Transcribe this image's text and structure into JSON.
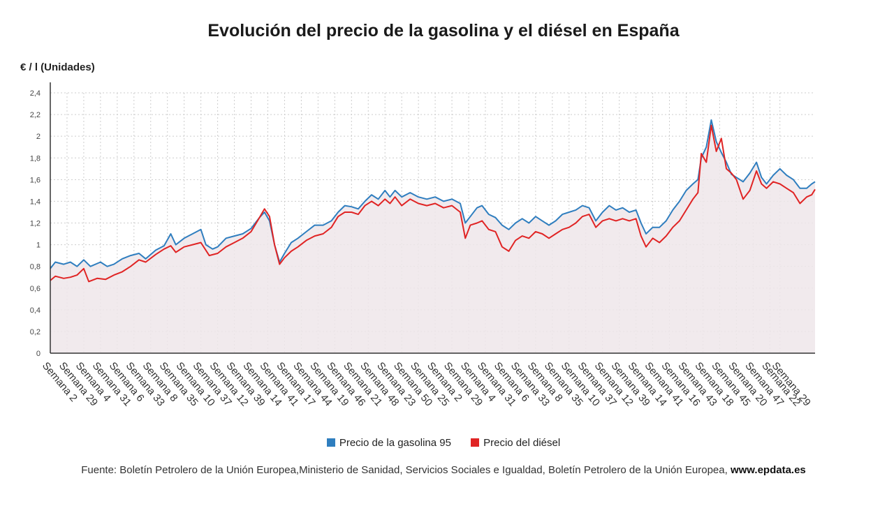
{
  "title": "Evolución del precio de la gasolina y el diésel en España",
  "unit_label": "€ / l (Unidades)",
  "source_text": "Fuente: Boletín Petrolero de la Unión Europea,Ministerio de Sanidad, Servicios Sociales e Igualdad, Boletín Petrolero de la Unión Europea,",
  "source_site": "www.epdata.es",
  "colors": {
    "gasolina": "#2f7ebf",
    "diesel": "#e02424",
    "fill": "#efe6ea",
    "grid": "#cccccc"
  },
  "chart_data": {
    "type": "line",
    "title": "Evolución del precio de la gasolina y el diésel en España",
    "ylabel": "€ / l (Unidades)",
    "ylim": [
      0,
      2.4
    ],
    "y_ticks": [
      "0",
      "0,2",
      "0,4",
      "0,6",
      "0,8",
      "1",
      "1,2",
      "1,4",
      "1,6",
      "1,8",
      "2",
      "2,2",
      "2,4"
    ],
    "grid": true,
    "legend_position": "bottom",
    "x_tick_labels": [
      "Semana 2",
      "Semana 29",
      "Semana 4",
      "Semana 31",
      "Semana 6",
      "Semana 33",
      "Semana 8",
      "Semana 35",
      "Semana 10",
      "Semana 37",
      "Semana 12",
      "Semana 39",
      "Semana 14",
      "Semana 41",
      "Semana 17",
      "Semana 44",
      "Semana 19",
      "Semana 46",
      "Semana 21",
      "Semana 48",
      "Semana 23",
      "Semana 50",
      "Semana 25",
      "Semana 2",
      "Semana 29",
      "Semana 4",
      "Semana 31",
      "Semana 6",
      "Semana 33",
      "Semana 8",
      "Semana 35",
      "Semana 10",
      "Semana 37",
      "Semana 12",
      "Semana 39",
      "Semana 14",
      "Semana 41",
      "Semana 16",
      "Semana 43",
      "Semana 18",
      "Semana 45",
      "Semana 20",
      "Semana 47",
      "Semana 22",
      "Semana 29"
    ],
    "x_tick_index": [
      0,
      1,
      2,
      3,
      4,
      5,
      6,
      7,
      8,
      9,
      10,
      11,
      12,
      13,
      14,
      15,
      16,
      17,
      18,
      19,
      20,
      21,
      22,
      23,
      24,
      25,
      26,
      27,
      28,
      29,
      30,
      31,
      32,
      33,
      34,
      35,
      36,
      37,
      38,
      39,
      40,
      41,
      42,
      43,
      43.6
    ],
    "series": [
      {
        "name": "Precio de la gasolina 95",
        "color": "#2f7ebf",
        "points": [
          [
            0,
            0.78
          ],
          [
            0.3,
            0.84
          ],
          [
            0.8,
            0.82
          ],
          [
            1.2,
            0.84
          ],
          [
            1.6,
            0.8
          ],
          [
            2,
            0.86
          ],
          [
            2.4,
            0.8
          ],
          [
            3,
            0.84
          ],
          [
            3.4,
            0.8
          ],
          [
            3.8,
            0.82
          ],
          [
            4.3,
            0.87
          ],
          [
            4.8,
            0.9
          ],
          [
            5.3,
            0.92
          ],
          [
            5.7,
            0.87
          ],
          [
            6.3,
            0.95
          ],
          [
            6.8,
            0.99
          ],
          [
            7.2,
            1.1
          ],
          [
            7.5,
            1.0
          ],
          [
            8,
            1.06
          ],
          [
            8.5,
            1.1
          ],
          [
            9,
            1.14
          ],
          [
            9.3,
            1.0
          ],
          [
            9.7,
            0.96
          ],
          [
            10,
            0.98
          ],
          [
            10.5,
            1.06
          ],
          [
            11,
            1.08
          ],
          [
            11.5,
            1.1
          ],
          [
            12,
            1.15
          ],
          [
            12.5,
            1.25
          ],
          [
            12.8,
            1.3
          ],
          [
            13.1,
            1.22
          ],
          [
            13.4,
            1.0
          ],
          [
            13.7,
            0.84
          ],
          [
            14.0,
            0.92
          ],
          [
            14.4,
            1.02
          ],
          [
            14.8,
            1.06
          ],
          [
            15.3,
            1.12
          ],
          [
            15.8,
            1.18
          ],
          [
            16.3,
            1.18
          ],
          [
            16.8,
            1.22
          ],
          [
            17.2,
            1.3
          ],
          [
            17.6,
            1.36
          ],
          [
            18,
            1.35
          ],
          [
            18.4,
            1.33
          ],
          [
            18.8,
            1.4
          ],
          [
            19.2,
            1.46
          ],
          [
            19.6,
            1.42
          ],
          [
            20,
            1.5
          ],
          [
            20.3,
            1.44
          ],
          [
            20.6,
            1.5
          ],
          [
            21,
            1.44
          ],
          [
            21.5,
            1.48
          ],
          [
            22,
            1.44
          ],
          [
            22.5,
            1.42
          ],
          [
            23,
            1.44
          ],
          [
            23.5,
            1.4
          ],
          [
            24,
            1.42
          ],
          [
            24.5,
            1.38
          ],
          [
            24.8,
            1.2
          ],
          [
            25.1,
            1.26
          ],
          [
            25.5,
            1.34
          ],
          [
            25.8,
            1.36
          ],
          [
            26.2,
            1.28
          ],
          [
            26.6,
            1.25
          ],
          [
            27,
            1.18
          ],
          [
            27.4,
            1.14
          ],
          [
            27.8,
            1.2
          ],
          [
            28.2,
            1.24
          ],
          [
            28.6,
            1.2
          ],
          [
            29,
            1.26
          ],
          [
            29.4,
            1.22
          ],
          [
            29.8,
            1.18
          ],
          [
            30.2,
            1.22
          ],
          [
            30.6,
            1.28
          ],
          [
            31,
            1.3
          ],
          [
            31.4,
            1.32
          ],
          [
            31.8,
            1.36
          ],
          [
            32.2,
            1.34
          ],
          [
            32.6,
            1.22
          ],
          [
            33,
            1.3
          ],
          [
            33.4,
            1.36
          ],
          [
            33.8,
            1.32
          ],
          [
            34.2,
            1.34
          ],
          [
            34.6,
            1.3
          ],
          [
            35,
            1.32
          ],
          [
            35.3,
            1.2
          ],
          [
            35.6,
            1.1
          ],
          [
            36,
            1.16
          ],
          [
            36.4,
            1.16
          ],
          [
            36.8,
            1.22
          ],
          [
            37.2,
            1.32
          ],
          [
            37.6,
            1.4
          ],
          [
            38,
            1.5
          ],
          [
            38.4,
            1.56
          ],
          [
            38.7,
            1.6
          ],
          [
            38.9,
            1.8
          ],
          [
            39.2,
            1.9
          ],
          [
            39.5,
            2.15
          ],
          [
            39.8,
            1.95
          ],
          [
            40.1,
            1.85
          ],
          [
            40.4,
            1.76
          ],
          [
            40.7,
            1.65
          ],
          [
            41,
            1.62
          ],
          [
            41.4,
            1.58
          ],
          [
            41.8,
            1.66
          ],
          [
            42.2,
            1.76
          ],
          [
            42.5,
            1.62
          ],
          [
            42.8,
            1.56
          ],
          [
            43.2,
            1.64
          ],
          [
            43.6,
            1.7
          ],
          [
            44,
            1.64
          ],
          [
            44.4,
            1.6
          ],
          [
            44.8,
            1.52
          ],
          [
            45.2,
            1.52
          ],
          [
            45.5,
            1.56
          ],
          [
            45.7,
            1.58
          ]
        ]
      },
      {
        "name": "Precio del diésel",
        "color": "#e02424",
        "points": [
          [
            0,
            0.67
          ],
          [
            0.3,
            0.71
          ],
          [
            0.8,
            0.69
          ],
          [
            1.2,
            0.7
          ],
          [
            1.6,
            0.72
          ],
          [
            2,
            0.78
          ],
          [
            2.3,
            0.66
          ],
          [
            2.8,
            0.69
          ],
          [
            3.3,
            0.68
          ],
          [
            3.8,
            0.72
          ],
          [
            4.3,
            0.75
          ],
          [
            4.8,
            0.8
          ],
          [
            5.3,
            0.86
          ],
          [
            5.7,
            0.84
          ],
          [
            6.3,
            0.91
          ],
          [
            6.8,
            0.96
          ],
          [
            7.2,
            0.99
          ],
          [
            7.5,
            0.93
          ],
          [
            8,
            0.98
          ],
          [
            8.5,
            1.0
          ],
          [
            9,
            1.02
          ],
          [
            9.5,
            0.9
          ],
          [
            10,
            0.92
          ],
          [
            10.5,
            0.98
          ],
          [
            11,
            1.02
          ],
          [
            11.5,
            1.06
          ],
          [
            12,
            1.12
          ],
          [
            12.5,
            1.25
          ],
          [
            12.8,
            1.33
          ],
          [
            13.1,
            1.26
          ],
          [
            13.4,
            1.0
          ],
          [
            13.7,
            0.82
          ],
          [
            14.0,
            0.88
          ],
          [
            14.4,
            0.94
          ],
          [
            14.8,
            0.98
          ],
          [
            15.3,
            1.04
          ],
          [
            15.8,
            1.08
          ],
          [
            16.3,
            1.1
          ],
          [
            16.8,
            1.16
          ],
          [
            17.2,
            1.26
          ],
          [
            17.6,
            1.3
          ],
          [
            18,
            1.3
          ],
          [
            18.4,
            1.28
          ],
          [
            18.8,
            1.36
          ],
          [
            19.2,
            1.4
          ],
          [
            19.6,
            1.36
          ],
          [
            20,
            1.42
          ],
          [
            20.3,
            1.38
          ],
          [
            20.6,
            1.44
          ],
          [
            21,
            1.36
          ],
          [
            21.5,
            1.42
          ],
          [
            22,
            1.38
          ],
          [
            22.5,
            1.36
          ],
          [
            23,
            1.38
          ],
          [
            23.5,
            1.34
          ],
          [
            24,
            1.36
          ],
          [
            24.5,
            1.3
          ],
          [
            24.8,
            1.06
          ],
          [
            25.1,
            1.18
          ],
          [
            25.5,
            1.2
          ],
          [
            25.8,
            1.22
          ],
          [
            26.2,
            1.14
          ],
          [
            26.6,
            1.12
          ],
          [
            27,
            0.98
          ],
          [
            27.4,
            0.94
          ],
          [
            27.8,
            1.04
          ],
          [
            28.2,
            1.08
          ],
          [
            28.6,
            1.06
          ],
          [
            29,
            1.12
          ],
          [
            29.4,
            1.1
          ],
          [
            29.8,
            1.06
          ],
          [
            30.2,
            1.1
          ],
          [
            30.6,
            1.14
          ],
          [
            31,
            1.16
          ],
          [
            31.4,
            1.2
          ],
          [
            31.8,
            1.26
          ],
          [
            32.2,
            1.28
          ],
          [
            32.6,
            1.16
          ],
          [
            33,
            1.22
          ],
          [
            33.4,
            1.24
          ],
          [
            33.8,
            1.22
          ],
          [
            34.2,
            1.24
          ],
          [
            34.6,
            1.22
          ],
          [
            35,
            1.24
          ],
          [
            35.3,
            1.08
          ],
          [
            35.6,
            0.98
          ],
          [
            36,
            1.06
          ],
          [
            36.4,
            1.02
          ],
          [
            36.8,
            1.08
          ],
          [
            37.2,
            1.16
          ],
          [
            37.6,
            1.22
          ],
          [
            38,
            1.32
          ],
          [
            38.4,
            1.42
          ],
          [
            38.7,
            1.48
          ],
          [
            38.9,
            1.84
          ],
          [
            39.2,
            1.76
          ],
          [
            39.5,
            2.1
          ],
          [
            39.8,
            1.86
          ],
          [
            40.1,
            1.98
          ],
          [
            40.4,
            1.7
          ],
          [
            40.7,
            1.66
          ],
          [
            41,
            1.6
          ],
          [
            41.4,
            1.42
          ],
          [
            41.8,
            1.5
          ],
          [
            42.2,
            1.68
          ],
          [
            42.5,
            1.56
          ],
          [
            42.8,
            1.52
          ],
          [
            43.2,
            1.58
          ],
          [
            43.6,
            1.56
          ],
          [
            44,
            1.52
          ],
          [
            44.4,
            1.48
          ],
          [
            44.8,
            1.38
          ],
          [
            45.2,
            1.44
          ],
          [
            45.5,
            1.46
          ],
          [
            45.7,
            1.51
          ]
        ]
      }
    ]
  }
}
